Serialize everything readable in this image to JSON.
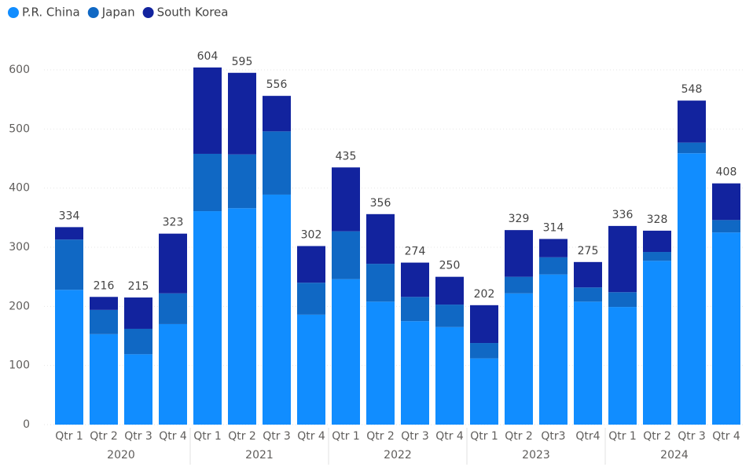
{
  "chart_data": {
    "type": "stacked_bar",
    "categories": [
      "Qtr 1",
      "Qtr 2",
      "Qtr 3",
      "Qtr 4",
      "Qtr 1",
      "Qtr 2",
      "Qtr 3",
      "Qtr 4",
      "Qtr 1",
      "Qtr 2",
      "Qtr 3",
      "Qtr 4",
      "Qtr 1",
      "Qtr 2",
      "Qtr3",
      "Qtr4",
      "Qtr 1",
      "Qtr 2",
      "Qtr 3",
      "Qtr 4"
    ],
    "years": [
      "2020",
      "2021",
      "2022",
      "2023",
      "2024"
    ],
    "series": [
      {
        "name": "P.R. China",
        "color": "#118dff",
        "values": [
          228,
          153,
          119,
          170,
          361,
          366,
          389,
          186,
          246,
          208,
          175,
          165,
          112,
          222,
          254,
          208,
          199,
          277,
          459,
          325
        ]
      },
      {
        "name": "Japan",
        "color": "#1068c4",
        "values": [
          85,
          41,
          43,
          52,
          97,
          91,
          107,
          54,
          81,
          64,
          41,
          38,
          26,
          28,
          29,
          24,
          25,
          15,
          18,
          21
        ]
      },
      {
        "name": "South Korea",
        "color": "#12239e",
        "values": [
          21,
          22,
          53,
          101,
          146,
          138,
          60,
          62,
          108,
          84,
          58,
          47,
          64,
          79,
          31,
          43,
          112,
          36,
          71,
          62
        ]
      }
    ],
    "totals": [
      334,
      216,
      215,
      323,
      604,
      595,
      556,
      302,
      435,
      356,
      274,
      250,
      202,
      329,
      314,
      275,
      336,
      328,
      548,
      408
    ],
    "ylim": [
      0,
      600
    ],
    "yticks": [
      0,
      100,
      200,
      300,
      400,
      500,
      600
    ],
    "grid": true
  }
}
